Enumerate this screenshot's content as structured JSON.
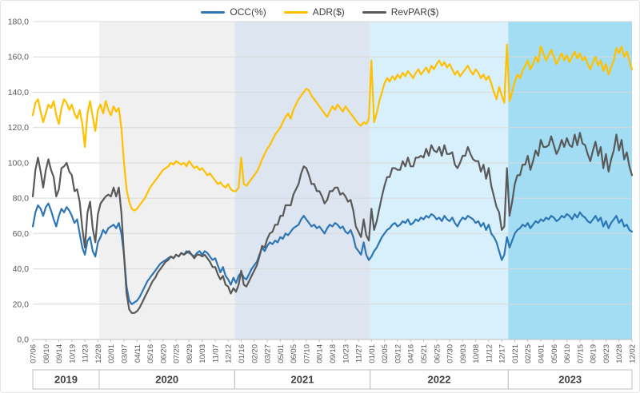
{
  "chart_data": {
    "type": "line",
    "title": "",
    "legend_position": "top",
    "grid": true,
    "ylim": [
      0,
      180
    ],
    "y_tick_step": 20,
    "y_tick_labels": [
      "0,0",
      "20,0",
      "40,0",
      "60,0",
      "80,0",
      "100,0",
      "120,0",
      "140,0",
      "160,0",
      "180,0"
    ],
    "tick_every": 5,
    "x_tick_labels": [
      "07/06",
      "08/10",
      "09/14",
      "10/19",
      "11/23",
      "12/28",
      "02/01",
      "03/07",
      "04/11",
      "05/16",
      "06/20",
      "07/25",
      "08/29",
      "10/03",
      "11/07",
      "12/12",
      "01/16",
      "02/20",
      "03/27",
      "05/01",
      "06/05",
      "07/10",
      "08/14",
      "09/18",
      "10/23",
      "11/27",
      "01/01",
      "02/05",
      "03/12",
      "04/16",
      "05/21",
      "06/25",
      "07/30",
      "09/03",
      "10/08",
      "11/12",
      "12/17",
      "01/21",
      "02/25",
      "04/01",
      "05/06",
      "06/10",
      "07/15",
      "08/19",
      "09/23",
      "10/28",
      "12/02"
    ],
    "year_bands": [
      {
        "label": "2019",
        "start_index": 0,
        "end_index": 25.5,
        "color": "#ffffff"
      },
      {
        "label": "2020",
        "start_index": 25.5,
        "end_index": 77.5,
        "color": "#f0f0f0"
      },
      {
        "label": "2021",
        "start_index": 77.5,
        "end_index": 129.5,
        "color": "#dde5f0"
      },
      {
        "label": "2022",
        "start_index": 129.5,
        "end_index": 182.5,
        "color": "#d8f0fb"
      },
      {
        "label": "2023",
        "start_index": 182.5,
        "end_index": 230,
        "color": "#a2ddf4"
      }
    ],
    "series": [
      {
        "name": "OCC(%)",
        "color": "#2e75b6",
        "values": [
          64,
          72,
          76,
          74,
          70,
          75,
          77,
          73,
          68,
          64,
          70,
          74,
          72,
          75,
          73,
          70,
          66,
          68,
          60,
          52,
          48,
          56,
          58,
          50,
          47,
          55,
          58,
          62,
          60,
          63,
          64,
          65,
          63,
          66,
          60,
          48,
          30,
          22,
          20,
          21,
          22,
          24,
          27,
          30,
          33,
          35,
          37,
          39,
          41,
          43,
          44,
          45,
          46,
          47,
          46,
          48,
          47,
          49,
          48,
          50,
          49,
          48,
          47,
          49,
          50,
          48,
          50,
          49,
          47,
          45,
          46,
          42,
          38,
          41,
          36,
          34,
          31,
          35,
          32,
          36,
          38,
          35,
          34,
          37,
          40,
          42,
          44,
          48,
          52,
          50,
          53,
          55,
          54,
          56,
          55,
          58,
          57,
          60,
          59,
          61,
          63,
          64,
          65,
          68,
          70,
          68,
          66,
          64,
          65,
          63,
          64,
          62,
          60,
          63,
          65,
          64,
          66,
          65,
          63,
          64,
          61,
          60,
          62,
          58,
          52,
          50,
          48,
          55,
          48,
          45,
          47,
          50,
          52,
          55,
          58,
          60,
          62,
          63,
          65,
          66,
          64,
          65,
          67,
          66,
          68,
          65,
          66,
          68,
          67,
          69,
          68,
          70,
          69,
          71,
          70,
          68,
          69,
          67,
          70,
          68,
          67,
          69,
          66,
          64,
          67,
          69,
          68,
          70,
          69,
          68,
          66,
          67,
          64,
          66,
          62,
          65,
          60,
          58,
          55,
          50,
          45,
          48,
          58,
          52,
          56,
          60,
          62,
          63,
          65,
          64,
          66,
          63,
          65,
          67,
          66,
          68,
          67,
          69,
          68,
          70,
          69,
          67,
          68,
          70,
          69,
          71,
          70,
          68,
          71,
          69,
          72,
          70,
          69,
          67,
          66,
          68,
          70,
          67,
          69,
          64,
          67,
          63,
          66,
          68,
          70,
          66,
          68,
          64,
          65,
          62,
          61
        ]
      },
      {
        "name": "ADR($)",
        "color": "#ffc000",
        "values": [
          127,
          134,
          136,
          129,
          123,
          128,
          133,
          131,
          135,
          127,
          122,
          131,
          136,
          134,
          130,
          133,
          128,
          125,
          130,
          122,
          109,
          128,
          135,
          126,
          118,
          130,
          133,
          128,
          135,
          130,
          127,
          132,
          129,
          131,
          120,
          100,
          85,
          78,
          74,
          73,
          74,
          76,
          78,
          80,
          83,
          86,
          88,
          90,
          92,
          94,
          96,
          97,
          98,
          100,
          99,
          101,
          100,
          99,
          100,
          98,
          101,
          99,
          97,
          98,
          96,
          97,
          95,
          93,
          94,
          92,
          90,
          88,
          89,
          87,
          86,
          88,
          85,
          84,
          84,
          86,
          103,
          88,
          87,
          89,
          91,
          93,
          95,
          98,
          102,
          105,
          108,
          110,
          113,
          116,
          118,
          120,
          123,
          126,
          128,
          125,
          130,
          133,
          136,
          138,
          140,
          142,
          141,
          138,
          136,
          134,
          132,
          130,
          128,
          126,
          129,
          132,
          130,
          133,
          131,
          129,
          132,
          130,
          128,
          126,
          124,
          122,
          121,
          123,
          122,
          125,
          158,
          123,
          128,
          135,
          140,
          145,
          148,
          146,
          149,
          147,
          150,
          148,
          151,
          149,
          152,
          150,
          148,
          151,
          153,
          150,
          152,
          154,
          151,
          155,
          153,
          156,
          158,
          155,
          157,
          154,
          156,
          153,
          150,
          152,
          149,
          151,
          153,
          155,
          152,
          150,
          153,
          151,
          148,
          150,
          147,
          149,
          145,
          140,
          136,
          143,
          138,
          134,
          167,
          135,
          140,
          146,
          150,
          148,
          152,
          155,
          158,
          153,
          156,
          160,
          157,
          166,
          162,
          158,
          161,
          164,
          160,
          156,
          159,
          162,
          158,
          161,
          157,
          160,
          163,
          159,
          162,
          158,
          160,
          156,
          153,
          157,
          160,
          155,
          158,
          152,
          156,
          150,
          154,
          158,
          165,
          162,
          166,
          160,
          163,
          158,
          153
        ]
      },
      {
        "name": "RevPAR($)",
        "color": "#595959",
        "values": [
          81,
          96,
          103,
          95,
          86,
          96,
          102,
          96,
          92,
          81,
          85,
          97,
          98,
          100,
          95,
          93,
          84,
          85,
          78,
          63,
          52,
          72,
          78,
          63,
          55,
          71,
          77,
          79,
          81,
          82,
          81,
          86,
          81,
          86,
          72,
          48,
          26,
          17,
          15,
          15,
          16,
          18,
          21,
          24,
          27,
          30,
          33,
          35,
          38,
          40,
          42,
          44,
          45,
          47,
          46,
          48,
          47,
          49,
          48,
          49,
          50,
          48,
          46,
          48,
          48,
          47,
          48,
          46,
          44,
          41,
          41,
          37,
          34,
          36,
          31,
          30,
          26,
          29,
          27,
          31,
          39,
          31,
          30,
          33,
          36,
          39,
          42,
          47,
          53,
          52,
          57,
          60,
          61,
          65,
          65,
          70,
          70,
          76,
          76,
          76,
          82,
          85,
          88,
          94,
          98,
          97,
          93,
          88,
          88,
          84,
          84,
          81,
          77,
          79,
          84,
          84,
          86,
          86,
          82,
          83,
          81,
          78,
          79,
          73,
          64,
          61,
          58,
          68,
          59,
          56,
          74,
          62,
          67,
          74,
          81,
          87,
          92,
          92,
          97,
          97,
          96,
          96,
          101,
          98,
          103,
          98,
          98,
          103,
          103,
          104,
          103,
          108,
          104,
          110,
          107,
          106,
          109,
          104,
          110,
          105,
          105,
          106,
          99,
          97,
          100,
          104,
          104,
          109,
          105,
          102,
          101,
          101,
          95,
          99,
          91,
          97,
          87,
          81,
          75,
          72,
          62,
          64,
          97,
          70,
          78,
          88,
          93,
          93,
          99,
          99,
          104,
          96,
          101,
          107,
          104,
          113,
          109,
          109,
          110,
          115,
          110,
          105,
          108,
          113,
          109,
          114,
          110,
          109,
          116,
          110,
          117,
          111,
          110,
          105,
          101,
          107,
          112,
          104,
          109,
          97,
          105,
          95,
          102,
          107,
          116,
          107,
          113,
          102,
          106,
          98,
          93
        ]
      }
    ]
  }
}
